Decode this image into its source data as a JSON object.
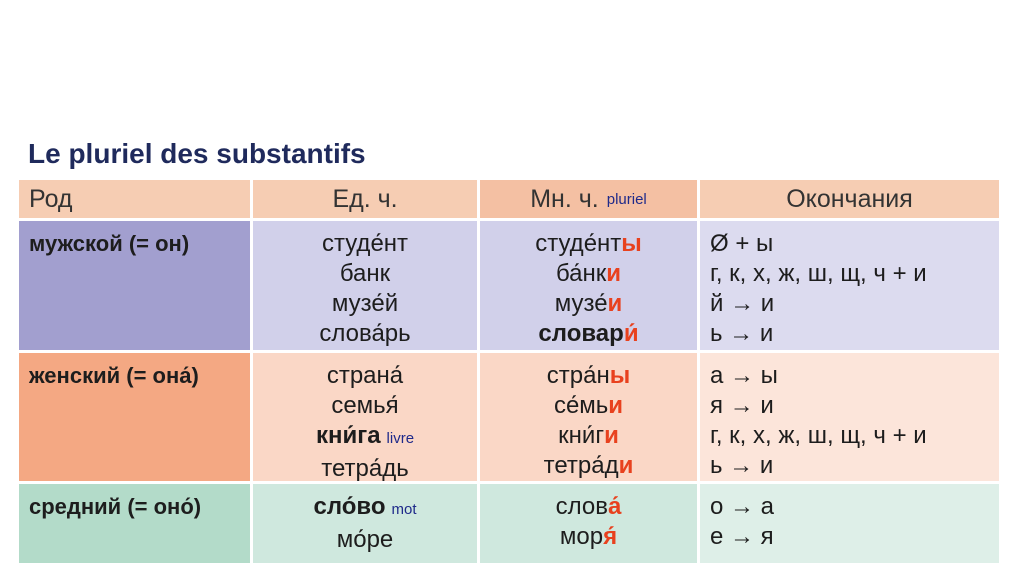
{
  "title": "Le pluriel des substantifs",
  "headers": {
    "gender": "Род",
    "singular": "Ед. ч.",
    "plural": "Мн. ч.",
    "plural_note": "pluriel",
    "endings": "Окончания"
  },
  "rows": [
    {
      "gender": "мужской (= он)",
      "singular": [
        {
          "text": "студе́нт"
        },
        {
          "text": "банк"
        },
        {
          "text": "музе́й"
        },
        {
          "text": "слова́рь"
        }
      ],
      "plural": [
        {
          "stem": "студе́нт",
          "end": "ы"
        },
        {
          "stem": "ба́нк",
          "end": "и"
        },
        {
          "stem": "музе́",
          "end": "и"
        },
        {
          "stem": "словар",
          "end": "и́",
          "bold": true
        }
      ],
      "endings": [
        "Ø + ы",
        "г, к, х, ж, ш, щ, ч + и",
        "й → и",
        "ь → и"
      ]
    },
    {
      "gender": "женский (= она́)",
      "singular": [
        {
          "text": "страна́"
        },
        {
          "text": "семья́"
        },
        {
          "text": "кни́га",
          "bold": true,
          "note": "livre"
        },
        {
          "text": "тетра́дь"
        }
      ],
      "plural": [
        {
          "stem": "стра́н",
          "end": "ы"
        },
        {
          "stem": "се́мь",
          "end": "и"
        },
        {
          "stem": "кни́г",
          "end": "и"
        },
        {
          "stem": "тетра́д",
          "end": "и"
        }
      ],
      "endings": [
        "а → ы",
        "я → и",
        "г, к, х, ж, ш, щ, ч + и",
        "ь → и"
      ]
    },
    {
      "gender": "средний (= оно́)",
      "singular": [
        {
          "text": "сло́во",
          "bold": true,
          "note": "mot"
        },
        {
          "text": "мо́ре"
        }
      ],
      "plural": [
        {
          "stem": "слов",
          "end": "а́"
        },
        {
          "stem": "мор",
          "end": "я́"
        }
      ],
      "endings": [
        "о → а",
        "е → я"
      ]
    }
  ],
  "colors": {
    "header_a": "#f6cdb3",
    "header_b": "#f4c0a3",
    "masc_gender": "#a29fcf",
    "masc_body": "#d1d0ea",
    "masc_end": "#dcdbef",
    "fem_gender": "#f4a883",
    "fem_body": "#fad7c6",
    "fem_end": "#fce5da",
    "neut_gender": "#b3dbc9",
    "neut_body": "#cfe8de",
    "neut_end": "#deefe8",
    "ending_accent": "#e8411e"
  }
}
